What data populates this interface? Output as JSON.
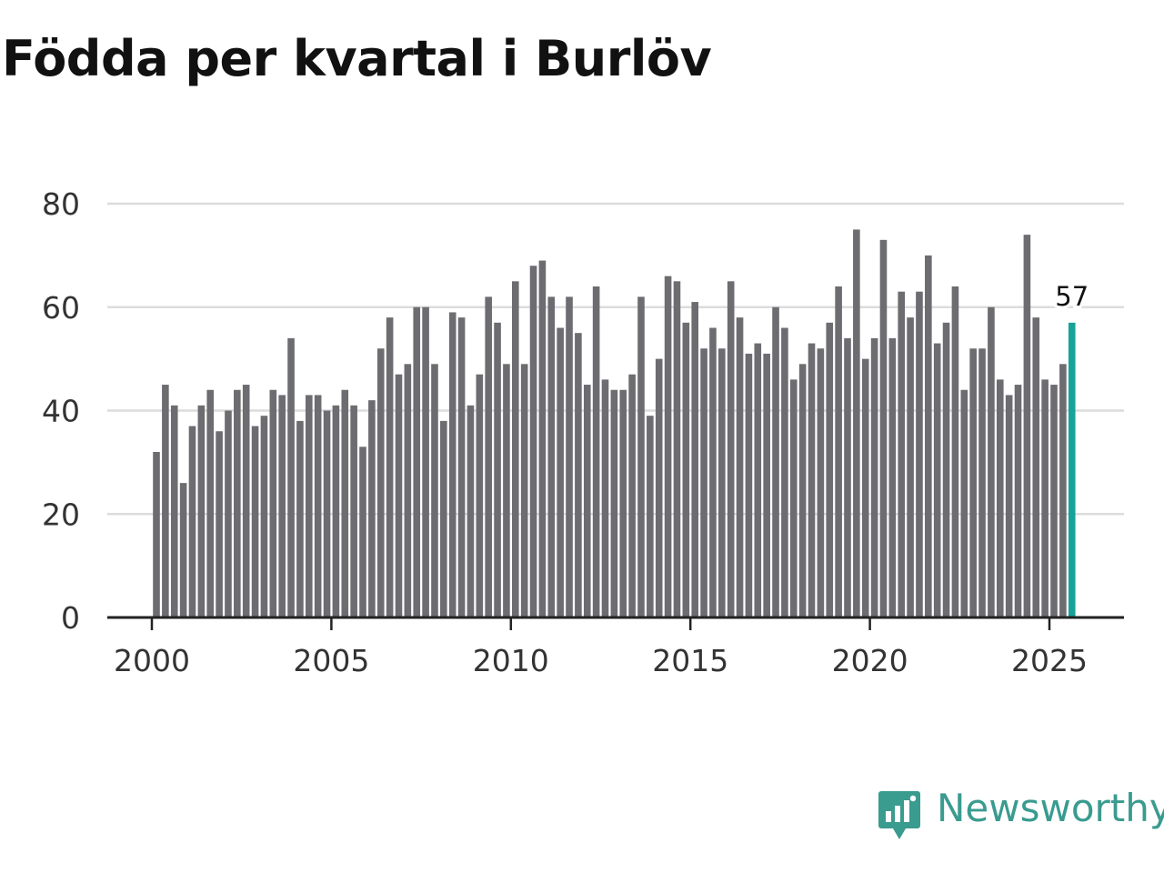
{
  "title": "Födda per kvartal i Burlöv",
  "brand": {
    "name": "Newsworthy",
    "color": "#3a9b8f",
    "icon": "newsworthy-logo-icon"
  },
  "colors": {
    "bar": "#6d6c70",
    "highlight": "#17a398",
    "grid": "#dcdcdc",
    "axis": "#222222"
  },
  "chart_data": {
    "type": "bar",
    "title": "Födda per kvartal i Burlöv",
    "xlabel": "",
    "ylabel": "",
    "ylim": [
      0,
      80
    ],
    "yticks": [
      0,
      20,
      40,
      60,
      80
    ],
    "xticks": [
      "2000",
      "2005",
      "2010",
      "2015",
      "2020",
      "2025"
    ],
    "grid": true,
    "start": "2000 Q1",
    "categories": [
      "2000 Q1",
      "2000 Q2",
      "2000 Q3",
      "2000 Q4",
      "2001 Q1",
      "2001 Q2",
      "2001 Q3",
      "2001 Q4",
      "2002 Q1",
      "2002 Q2",
      "2002 Q3",
      "2002 Q4",
      "2003 Q1",
      "2003 Q2",
      "2003 Q3",
      "2003 Q4",
      "2004 Q1",
      "2004 Q2",
      "2004 Q3",
      "2004 Q4",
      "2005 Q1",
      "2005 Q2",
      "2005 Q3",
      "2005 Q4",
      "2006 Q1",
      "2006 Q2",
      "2006 Q3",
      "2006 Q4",
      "2007 Q1",
      "2007 Q2",
      "2007 Q3",
      "2007 Q4",
      "2008 Q1",
      "2008 Q2",
      "2008 Q3",
      "2008 Q4",
      "2009 Q1",
      "2009 Q2",
      "2009 Q3",
      "2009 Q4",
      "2010 Q1",
      "2010 Q2",
      "2010 Q3",
      "2010 Q4",
      "2011 Q1",
      "2011 Q2",
      "2011 Q3",
      "2011 Q4",
      "2012 Q1",
      "2012 Q2",
      "2012 Q3",
      "2012 Q4",
      "2013 Q1",
      "2013 Q2",
      "2013 Q3",
      "2013 Q4",
      "2014 Q1",
      "2014 Q2",
      "2014 Q3",
      "2014 Q4",
      "2015 Q1",
      "2015 Q2",
      "2015 Q3",
      "2015 Q4",
      "2016 Q1",
      "2016 Q2",
      "2016 Q3",
      "2016 Q4",
      "2017 Q1",
      "2017 Q2",
      "2017 Q3",
      "2017 Q4",
      "2018 Q1",
      "2018 Q2",
      "2018 Q3",
      "2018 Q4",
      "2019 Q1",
      "2019 Q2",
      "2019 Q3",
      "2019 Q4",
      "2020 Q1",
      "2020 Q2",
      "2020 Q3",
      "2020 Q4",
      "2021 Q1",
      "2021 Q2",
      "2021 Q3",
      "2021 Q4",
      "2022 Q1",
      "2022 Q2",
      "2022 Q3",
      "2022 Q4",
      "2023 Q1",
      "2023 Q2",
      "2023 Q3",
      "2023 Q4",
      "2024 Q1",
      "2024 Q2",
      "2024 Q3",
      "2024 Q4",
      "2025 Q1",
      "2025 Q2",
      "2025 Q3"
    ],
    "values": [
      32,
      45,
      41,
      26,
      37,
      41,
      44,
      36,
      40,
      44,
      45,
      37,
      39,
      44,
      43,
      54,
      38,
      43,
      43,
      40,
      41,
      44,
      41,
      33,
      42,
      52,
      58,
      47,
      49,
      60,
      60,
      49,
      38,
      59,
      58,
      41,
      47,
      62,
      57,
      49,
      65,
      49,
      68,
      69,
      62,
      56,
      62,
      55,
      45,
      64,
      46,
      44,
      44,
      47,
      62,
      39,
      50,
      66,
      65,
      57,
      61,
      52,
      56,
      52,
      65,
      58,
      51,
      53,
      51,
      60,
      56,
      46,
      49,
      53,
      52,
      57,
      64,
      54,
      75,
      50,
      54,
      73,
      54,
      63,
      58,
      63,
      70,
      53,
      57,
      64,
      44,
      52,
      52,
      60,
      46,
      43,
      45,
      74,
      58,
      46,
      45,
      49,
      57
    ],
    "highlight_label": "57"
  }
}
